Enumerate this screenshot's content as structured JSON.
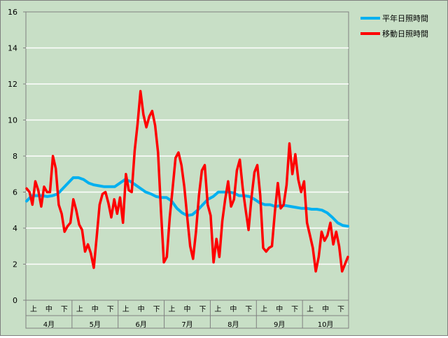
{
  "chart_data": {
    "type": "line",
    "y_ticks": [
      "0",
      "2",
      "4",
      "6",
      "8",
      "10",
      "12",
      "14",
      "16"
    ],
    "ylim": [
      0,
      16
    ],
    "grid": true,
    "legend_position": "top-right",
    "months": [
      "4月",
      "5月",
      "6月",
      "7月",
      "8月",
      "9月",
      "10月"
    ],
    "periods": [
      "上",
      "中",
      "下"
    ],
    "series": [
      {
        "name": "平年日照時間",
        "color": "#00b0f0",
        "values": [
          5.5,
          5.8,
          5.8,
          5.8,
          5.75,
          5.8,
          5.9,
          6.2,
          6.5,
          6.8,
          6.8,
          6.7,
          6.5,
          6.4,
          6.35,
          6.3,
          6.3,
          6.3,
          6.5,
          6.7,
          6.6,
          6.4,
          6.2,
          6.0,
          5.9,
          5.75,
          5.7,
          5.7,
          5.5,
          5.1,
          4.85,
          4.7,
          4.75,
          5.0,
          5.3,
          5.6,
          5.75,
          6.0,
          6.0,
          6.0,
          5.95,
          5.8,
          5.8,
          5.75,
          5.6,
          5.4,
          5.3,
          5.3,
          5.2,
          5.25,
          5.25,
          5.2,
          5.15,
          5.1,
          5.1,
          5.05,
          5.05,
          5.0,
          4.85,
          4.6,
          4.3,
          4.15,
          4.1
        ]
      },
      {
        "name": "移動日照時間",
        "color": "#ff0000",
        "values": [
          6.2,
          6.0,
          5.3,
          6.6,
          6.1,
          5.2,
          6.3,
          6.0,
          6.0,
          8.0,
          7.3,
          5.3,
          4.8,
          3.8,
          4.1,
          4.3,
          5.6,
          5.0,
          4.2,
          3.9,
          2.7,
          3.1,
          2.6,
          1.8,
          3.5,
          5.3,
          5.9,
          6.0,
          5.4,
          4.6,
          5.6,
          4.8,
          5.7,
          4.3,
          7.0,
          6.1,
          6.0,
          8.3,
          9.8,
          11.6,
          10.3,
          9.6,
          10.2,
          10.5,
          9.7,
          8.2,
          5.0,
          2.1,
          2.4,
          4.6,
          6.2,
          7.9,
          8.2,
          7.5,
          6.3,
          4.6,
          3.0,
          2.3,
          3.8,
          5.8,
          7.2,
          7.5,
          5.3,
          4.7,
          2.1,
          3.4,
          2.4,
          4.4,
          5.6,
          6.6,
          5.2,
          5.6,
          7.2,
          7.8,
          6.2,
          5.0,
          3.9,
          5.7,
          7.1,
          7.5,
          5.8,
          2.9,
          2.7,
          2.9,
          3.0,
          4.9,
          6.5,
          5.1,
          5.3,
          6.4,
          8.7,
          7.0,
          8.1,
          6.7,
          6.0,
          6.6,
          4.3,
          3.6,
          2.9,
          1.6,
          2.4,
          3.8,
          3.3,
          3.6,
          4.3,
          3.1,
          3.8,
          3.0,
          1.6,
          2.0,
          2.4
        ]
      }
    ]
  }
}
